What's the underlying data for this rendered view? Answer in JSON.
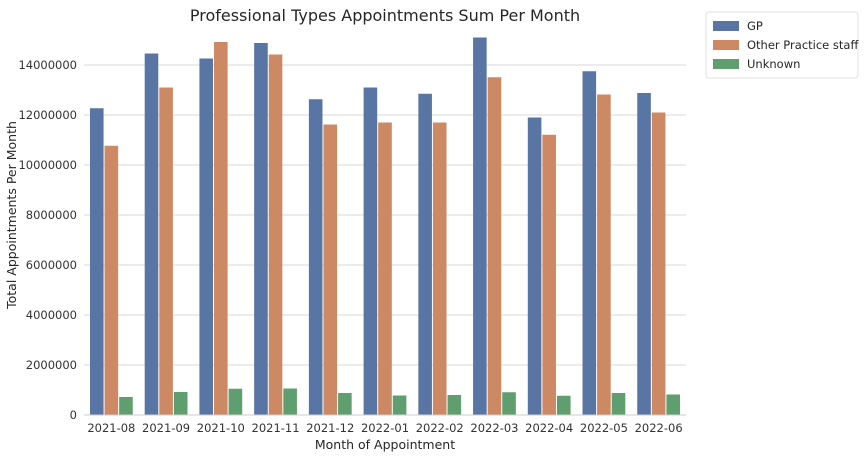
{
  "chart_data": {
    "type": "bar",
    "title": "Professional Types Appointments Sum Per Month",
    "xlabel": "Month of Appointment",
    "ylabel": "Total Appointments Per Month",
    "categories": [
      "2021-08",
      "2021-09",
      "2021-10",
      "2021-11",
      "2021-12",
      "2022-01",
      "2022-02",
      "2022-03",
      "2022-04",
      "2022-05",
      "2022-06"
    ],
    "series": [
      {
        "name": "GP",
        "color": "#5875a4",
        "values": [
          12270000,
          14460000,
          14260000,
          14880000,
          12630000,
          13100000,
          12850000,
          15100000,
          11900000,
          13750000,
          12880000
        ]
      },
      {
        "name": "Other Practice staff",
        "color": "#cc8963",
        "values": [
          10770000,
          13100000,
          14920000,
          14420000,
          11620000,
          11700000,
          11700000,
          13510000,
          11210000,
          12820000,
          12100000
        ]
      },
      {
        "name": "Unknown",
        "color": "#5f9e6e",
        "values": [
          720000,
          920000,
          1050000,
          1060000,
          880000,
          780000,
          800000,
          910000,
          770000,
          880000,
          820000
        ]
      }
    ],
    "yticks": [
      0,
      2000000,
      4000000,
      6000000,
      8000000,
      10000000,
      12000000,
      14000000
    ],
    "ylim": [
      0,
      15400000
    ],
    "grid": "horizontal",
    "legend_position": "outside-top-right"
  }
}
